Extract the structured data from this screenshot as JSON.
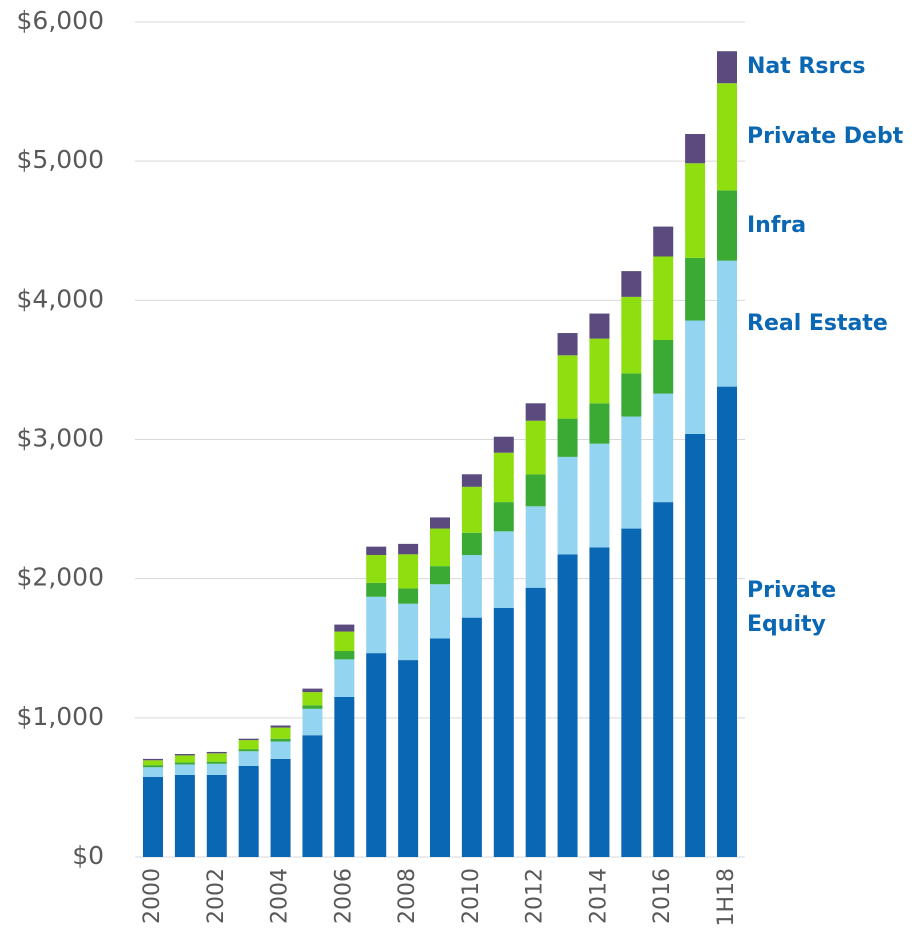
{
  "chart_data": {
    "type": "stacked_bar",
    "categories": [
      "2000",
      null,
      "2002",
      null,
      "2004",
      null,
      "2006",
      null,
      "2008",
      null,
      "2010",
      null,
      "2012",
      null,
      "2014",
      null,
      "2016",
      null,
      "1H18"
    ],
    "series": [
      {
        "name": "Private Equity",
        "color": "#0a67b3",
        "values": [
          575,
          590,
          590,
          655,
          705,
          875,
          1150,
          1465,
          1415,
          1570,
          1720,
          1790,
          1935,
          2175,
          2225,
          2360,
          2550,
          3040,
          3380
        ]
      },
      {
        "name": "Real Estate",
        "color": "#93d4f1",
        "values": [
          70,
          75,
          80,
          105,
          125,
          190,
          270,
          405,
          405,
          390,
          450,
          550,
          585,
          700,
          745,
          805,
          780,
          815,
          905
        ]
      },
      {
        "name": "Infra",
        "color": "#3aaa35",
        "values": [
          15,
          15,
          15,
          15,
          20,
          25,
          60,
          100,
          110,
          130,
          160,
          210,
          230,
          275,
          290,
          310,
          385,
          450,
          505
        ]
      },
      {
        "name": "Private Debt",
        "color": "#8fdf10",
        "values": [
          35,
          50,
          60,
          65,
          80,
          95,
          140,
          200,
          245,
          270,
          330,
          355,
          385,
          455,
          465,
          550,
          600,
          680,
          770
        ]
      },
      {
        "name": "Nat Rsrcs",
        "color": "#5b4a7e",
        "values": [
          10,
          10,
          10,
          10,
          15,
          25,
          50,
          60,
          75,
          80,
          90,
          115,
          125,
          160,
          180,
          185,
          215,
          210,
          230
        ]
      }
    ],
    "ylim": [
      0,
      6000
    ],
    "yticks": [
      {
        "value": 0,
        "label": "$0"
      },
      {
        "value": 1000,
        "label": "$1,000"
      },
      {
        "value": 2000,
        "label": "$2,000"
      },
      {
        "value": 3000,
        "label": "$3,000"
      },
      {
        "value": 4000,
        "label": "$4,000"
      },
      {
        "value": 5000,
        "label": "$5,000"
      },
      {
        "value": 6000,
        "label": "$6,000"
      }
    ],
    "grid": true
  }
}
